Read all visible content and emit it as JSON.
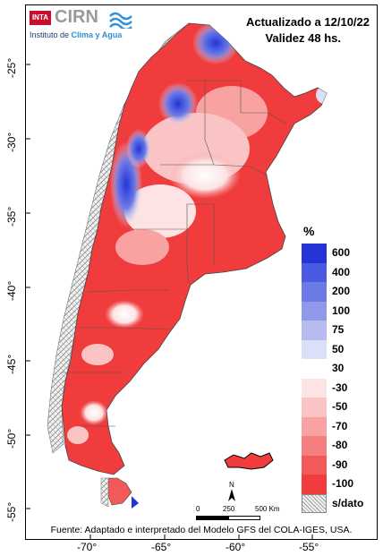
{
  "header": {
    "title": "Actualizado a 12/10/22",
    "subtitle": "Validez 48 hs."
  },
  "logo": {
    "badge": "INTA",
    "name": "CIRN",
    "subtitle_prefix": "Instituto de ",
    "subtitle_accent": "Clima y Agua"
  },
  "legend": {
    "unit": "%",
    "items": [
      {
        "label": "600",
        "color": "#2434d8"
      },
      {
        "label": "400",
        "color": "#4a5ae2"
      },
      {
        "label": "200",
        "color": "#6c7ae6"
      },
      {
        "label": "100",
        "color": "#9098ea"
      },
      {
        "label": "75",
        "color": "#b7bcf0"
      },
      {
        "label": "50",
        "color": "#dcdff8"
      },
      {
        "label": "30",
        "color": "#ffffff"
      },
      {
        "label": "-30",
        "color": "#fde3e3"
      },
      {
        "label": "-50",
        "color": "#fbc4c4"
      },
      {
        "label": "-70",
        "color": "#f8a2a2"
      },
      {
        "label": "-80",
        "color": "#f57e7e"
      },
      {
        "label": "-90",
        "color": "#f25a5a"
      },
      {
        "label": "-100",
        "color": "#f03c3c"
      },
      {
        "label": "s/dato",
        "color": "hatch"
      }
    ]
  },
  "axes": {
    "y_ticks": [
      "-25°",
      "-30°",
      "-35°",
      "-40°",
      "-45°",
      "-50°",
      "-55°"
    ],
    "x_ticks": [
      "-70°",
      "-65°",
      "-60°",
      "-55°"
    ]
  },
  "scale_bar": {
    "labels": [
      "0",
      "250",
      "500 Km"
    ],
    "north": "N"
  },
  "footer": {
    "source": "Fuente: Adaptado e interpretado del Modelo GFS del COLA-IGES, USA."
  }
}
